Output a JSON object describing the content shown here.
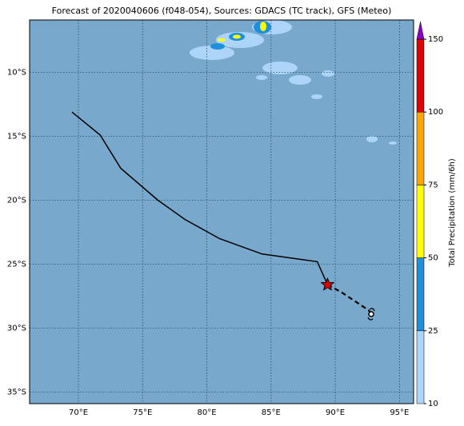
{
  "map": {
    "title": "Forecast of 2020040606 (f048-054), Sources: GDACS (TC track), GFS (Meteo)",
    "xlim": [
      66.2,
      96.1
    ],
    "ylim": [
      -35.9,
      -5.9
    ],
    "xticks": [
      {
        "value": 70,
        "label": "70°E"
      },
      {
        "value": 75,
        "label": "75°E"
      },
      {
        "value": 80,
        "label": "80°E"
      },
      {
        "value": 85,
        "label": "85°E"
      },
      {
        "value": 90,
        "label": "90°E"
      },
      {
        "value": 95,
        "label": "95°E"
      }
    ],
    "yticks": [
      {
        "value": -10,
        "label": "10°S"
      },
      {
        "value": -15,
        "label": "15°S"
      },
      {
        "value": -20,
        "label": "20°S"
      },
      {
        "value": -25,
        "label": "25°S"
      },
      {
        "value": -30,
        "label": "30°S"
      },
      {
        "value": -35,
        "label": "35°S"
      }
    ],
    "grid": true,
    "track": {
      "color": "#000000",
      "lon": [
        69.5,
        71.7,
        73.3,
        76.2,
        78.3,
        81.0,
        84.3,
        88.6,
        89.4
      ],
      "lat": [
        -13.1,
        -14.9,
        -17.5,
        -20.0,
        -21.5,
        -23.0,
        -24.2,
        -24.8,
        -26.6
      ]
    },
    "forecast_track": {
      "color": "#000000",
      "lon": [
        89.4,
        90.5,
        92.6,
        92.8
      ],
      "lat": [
        -26.6,
        -27.2,
        -28.6,
        -28.9
      ]
    },
    "current_position": {
      "lon": 89.4,
      "lat": -26.6,
      "color": "#e00000"
    },
    "colorbar": {
      "label": "Total Precipitation (mm/6h)",
      "bounds": [
        10,
        25,
        50,
        75,
        100,
        150
      ],
      "colors": [
        "#acd5f9",
        "#1e90e0",
        "#ffff00",
        "#ffa500",
        "#e00000"
      ],
      "extend_color": "#8a00c8"
    }
  }
}
